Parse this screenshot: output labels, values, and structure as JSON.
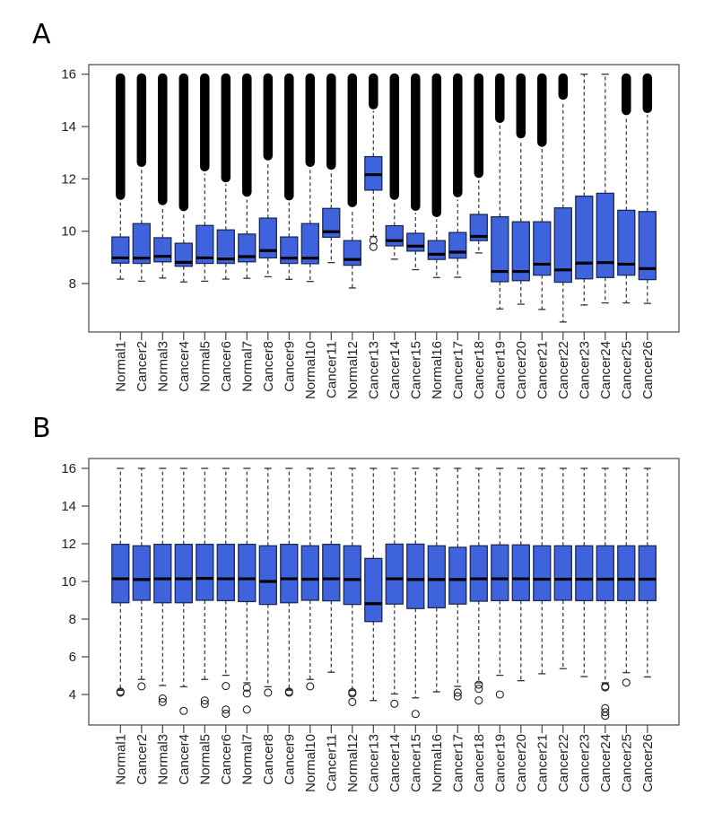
{
  "chart_data": [
    {
      "type": "box",
      "panel_label": "A",
      "title": "",
      "xlabel": "",
      "ylabel": "",
      "ylim": [
        6.0,
        16.6
      ],
      "yticks": [
        8,
        10,
        12,
        14,
        16
      ],
      "categories": [
        "Normal1",
        "Cancer2",
        "Normal3",
        "Cancer4",
        "Normal5",
        "Cancer6",
        "Normal7",
        "Cancer8",
        "Cancer9",
        "Normal10",
        "Cancer11",
        "Normal12",
        "Cancer13",
        "Cancer14",
        "Cancer15",
        "Normal16",
        "Cancer17",
        "Cancer18",
        "Cancer19",
        "Cancer20",
        "Cancer21",
        "Cancer22",
        "Cancer23",
        "Cancer24",
        "Cancer25",
        "Cancer26"
      ],
      "box_color": "#3f63dc",
      "boxes": [
        {
          "lower_whisker": 8.17,
          "q1": 8.78,
          "median": 8.98,
          "q3": 9.78,
          "upper_whisker": 11.1,
          "outlier_range_high": [
            11.23,
            16.0
          ]
        },
        {
          "lower_whisker": 8.09,
          "q1": 8.77,
          "median": 8.97,
          "q3": 10.29,
          "upper_whisker": 12.4,
          "outlier_range_high": [
            12.49,
            16.0
          ]
        },
        {
          "lower_whisker": 8.21,
          "q1": 8.83,
          "median": 9.04,
          "q3": 9.75,
          "upper_whisker": 10.9,
          "outlier_range_high": [
            11.03,
            16.0
          ]
        },
        {
          "lower_whisker": 8.06,
          "q1": 8.66,
          "median": 8.81,
          "q3": 9.54,
          "upper_whisker": 10.7,
          "outlier_range_high": [
            10.8,
            16.0
          ]
        },
        {
          "lower_whisker": 8.09,
          "q1": 8.77,
          "median": 8.98,
          "q3": 10.22,
          "upper_whisker": 12.2,
          "outlier_range_high": [
            12.32,
            16.0
          ]
        },
        {
          "lower_whisker": 8.17,
          "q1": 8.77,
          "median": 8.94,
          "q3": 10.05,
          "upper_whisker": 11.8,
          "outlier_range_high": [
            11.9,
            16.0
          ]
        },
        {
          "lower_whisker": 8.2,
          "q1": 8.83,
          "median": 9.03,
          "q3": 9.89,
          "upper_whisker": 11.2,
          "outlier_range_high": [
            11.35,
            16.0
          ]
        },
        {
          "lower_whisker": 8.26,
          "q1": 8.98,
          "median": 9.26,
          "q3": 10.5,
          "upper_whisker": 12.6,
          "outlier_range_high": [
            12.74,
            16.0
          ]
        },
        {
          "lower_whisker": 8.16,
          "q1": 8.77,
          "median": 8.97,
          "q3": 9.78,
          "upper_whisker": 11.1,
          "outlier_range_high": [
            11.21,
            16.0
          ]
        },
        {
          "lower_whisker": 8.08,
          "q1": 8.76,
          "median": 8.97,
          "q3": 10.29,
          "upper_whisker": 12.4,
          "outlier_range_high": [
            12.49,
            16.0
          ]
        },
        {
          "lower_whisker": 8.8,
          "q1": 9.77,
          "median": 9.98,
          "q3": 10.87,
          "upper_whisker": 12.3,
          "outlier_range_high": [
            12.38,
            16.0
          ]
        },
        {
          "lower_whisker": 7.83,
          "q1": 8.7,
          "median": 8.92,
          "q3": 9.64,
          "upper_whisker": 10.8,
          "outlier_range_high": [
            10.95,
            16.0
          ]
        },
        {
          "lower_whisker": 9.8,
          "q1": 11.57,
          "median": 12.16,
          "q3": 12.85,
          "upper_whisker": 14.6,
          "outlier_range_high": [
            14.69,
            16.0
          ],
          "outliers_low": [
            9.65,
            9.4
          ]
        },
        {
          "lower_whisker": 8.93,
          "q1": 9.44,
          "median": 9.64,
          "q3": 10.21,
          "upper_whisker": 11.1,
          "outlier_range_high": [
            11.23,
            16.0
          ]
        },
        {
          "lower_whisker": 8.53,
          "q1": 9.24,
          "median": 9.43,
          "q3": 9.92,
          "upper_whisker": 10.7,
          "outlier_range_high": [
            10.81,
            16.0
          ]
        },
        {
          "lower_whisker": 8.23,
          "q1": 8.92,
          "median": 9.12,
          "q3": 9.64,
          "upper_whisker": 10.45,
          "outlier_range_high": [
            10.57,
            16.0
          ]
        },
        {
          "lower_whisker": 8.24,
          "q1": 8.97,
          "median": 9.2,
          "q3": 9.95,
          "upper_whisker": 11.2,
          "outlier_range_high": [
            11.33,
            16.0
          ]
        },
        {
          "lower_whisker": 9.17,
          "q1": 9.64,
          "median": 9.8,
          "q3": 10.64,
          "upper_whisker": 11.95,
          "outlier_range_high": [
            12.07,
            16.0
          ]
        },
        {
          "lower_whisker": 7.03,
          "q1": 8.07,
          "median": 8.46,
          "q3": 10.55,
          "upper_whisker": 14.05,
          "outlier_range_high": [
            14.17,
            16.0
          ]
        },
        {
          "lower_whisker": 7.21,
          "q1": 8.11,
          "median": 8.46,
          "q3": 10.36,
          "upper_whisker": 13.45,
          "outlier_range_high": [
            13.58,
            16.0
          ]
        },
        {
          "lower_whisker": 7.01,
          "q1": 8.32,
          "median": 8.74,
          "q3": 10.36,
          "upper_whisker": 13.15,
          "outlier_range_high": [
            13.26,
            16.0
          ]
        },
        {
          "lower_whisker": 6.53,
          "q1": 8.05,
          "median": 8.52,
          "q3": 10.89,
          "upper_whisker": 14.95,
          "outlier_range_high": [
            15.06,
            16.0
          ]
        },
        {
          "lower_whisker": 7.18,
          "q1": 8.18,
          "median": 8.78,
          "q3": 11.34,
          "upper_whisker": 16.0
        },
        {
          "lower_whisker": 7.26,
          "q1": 8.23,
          "median": 8.8,
          "q3": 11.45,
          "upper_whisker": 16.0
        },
        {
          "lower_whisker": 7.26,
          "q1": 8.32,
          "median": 8.74,
          "q3": 10.8,
          "upper_whisker": 14.35,
          "outlier_range_high": [
            14.47,
            16.0
          ]
        },
        {
          "lower_whisker": 7.24,
          "q1": 8.15,
          "median": 8.57,
          "q3": 10.75,
          "upper_whisker": 14.45,
          "outlier_range_high": [
            14.55,
            16.0
          ]
        }
      ]
    },
    {
      "type": "box",
      "panel_label": "B",
      "title": "",
      "xlabel": "",
      "ylabel": "",
      "ylim": [
        2.6,
        16.55
      ],
      "yticks": [
        4,
        6,
        8,
        10,
        12,
        14,
        16
      ],
      "categories": [
        "Normal1",
        "Cancer2",
        "Normal3",
        "Cancer4",
        "Normal5",
        "Cancer6",
        "Normal7",
        "Cancer8",
        "Cancer9",
        "Normal10",
        "Cancer11",
        "Normal12",
        "Cancer13",
        "Cancer14",
        "Cancer15",
        "Normal16",
        "Cancer17",
        "Cancer18",
        "Cancer19",
        "Cancer20",
        "Cancer21",
        "Cancer22",
        "Cancer23",
        "Cancer24",
        "Cancer25",
        "Cancer26"
      ],
      "box_color": "#3f63dc",
      "boxes": [
        {
          "lower_whisker": 4.22,
          "q1": 8.87,
          "median": 10.14,
          "q3": 11.97,
          "upper_whisker": 16.0,
          "outliers": [
            4.15,
            4.1
          ]
        },
        {
          "lower_whisker": 4.8,
          "q1": 9.0,
          "median": 10.1,
          "q3": 11.89,
          "upper_whisker": 16.0,
          "outliers": [
            4.43
          ]
        },
        {
          "lower_whisker": 4.48,
          "q1": 8.87,
          "median": 10.14,
          "q3": 11.97,
          "upper_whisker": 16.0,
          "outliers": [
            3.79,
            3.6
          ]
        },
        {
          "lower_whisker": 4.41,
          "q1": 8.87,
          "median": 10.14,
          "q3": 11.97,
          "upper_whisker": 16.0,
          "outliers": [
            3.13
          ]
        },
        {
          "lower_whisker": 4.8,
          "q1": 9.0,
          "median": 10.16,
          "q3": 11.97,
          "upper_whisker": 16.0,
          "outliers": [
            3.68,
            3.5
          ]
        },
        {
          "lower_whisker": 5.02,
          "q1": 8.98,
          "median": 10.14,
          "q3": 11.97,
          "upper_whisker": 16.0,
          "outliers": [
            4.45,
            3.2,
            2.98
          ]
        },
        {
          "lower_whisker": 4.62,
          "q1": 8.93,
          "median": 10.14,
          "q3": 11.97,
          "upper_whisker": 16.0,
          "outliers": [
            4.36,
            4.05,
            3.2
          ]
        },
        {
          "lower_whisker": 4.41,
          "q1": 8.78,
          "median": 10.0,
          "q3": 11.89,
          "upper_whisker": 16.0,
          "outliers": [
            4.1
          ]
        },
        {
          "lower_whisker": 4.22,
          "q1": 8.87,
          "median": 10.14,
          "q3": 11.97,
          "upper_whisker": 16.0,
          "outliers": [
            4.15,
            4.1
          ]
        },
        {
          "lower_whisker": 4.8,
          "q1": 9.0,
          "median": 10.12,
          "q3": 11.89,
          "upper_whisker": 16.0,
          "outliers": [
            4.43
          ]
        },
        {
          "lower_whisker": 5.18,
          "q1": 8.97,
          "median": 10.14,
          "q3": 11.97,
          "upper_whisker": 16.0,
          "outliers": []
        },
        {
          "lower_whisker": 4.22,
          "q1": 8.78,
          "median": 10.1,
          "q3": 11.89,
          "upper_whisker": 16.0,
          "outliers": [
            4.12,
            4.05,
            3.6
          ]
        },
        {
          "lower_whisker": 3.68,
          "q1": 7.87,
          "median": 8.82,
          "q3": 11.22,
          "upper_whisker": 16.0,
          "outliers": []
        },
        {
          "lower_whisker": 4.03,
          "q1": 8.8,
          "median": 10.14,
          "q3": 11.98,
          "upper_whisker": 16.0,
          "outliers": [
            3.51
          ]
        },
        {
          "lower_whisker": 3.82,
          "q1": 8.56,
          "median": 10.1,
          "q3": 11.98,
          "upper_whisker": 16.0,
          "outliers": [
            2.97
          ]
        },
        {
          "lower_whisker": 4.14,
          "q1": 8.6,
          "median": 10.1,
          "q3": 11.89,
          "upper_whisker": 16.0,
          "outliers": []
        },
        {
          "lower_whisker": 4.43,
          "q1": 8.8,
          "median": 10.1,
          "q3": 11.81,
          "upper_whisker": 16.0,
          "outliers": [
            4.1,
            3.9
          ]
        },
        {
          "lower_whisker": 4.62,
          "q1": 8.95,
          "median": 10.14,
          "q3": 11.89,
          "upper_whisker": 16.0,
          "outliers": [
            4.52,
            4.3,
            3.68
          ]
        },
        {
          "lower_whisker": 5.02,
          "q1": 8.98,
          "median": 10.14,
          "q3": 11.94,
          "upper_whisker": 16.0,
          "outliers": [
            4.0
          ]
        },
        {
          "lower_whisker": 4.73,
          "q1": 8.98,
          "median": 10.14,
          "q3": 11.94,
          "upper_whisker": 16.0,
          "outliers": []
        },
        {
          "lower_whisker": 5.1,
          "q1": 8.98,
          "median": 10.12,
          "q3": 11.89,
          "upper_whisker": 16.0,
          "outliers": []
        },
        {
          "lower_whisker": 5.37,
          "q1": 9.0,
          "median": 10.12,
          "q3": 11.89,
          "upper_whisker": 16.0,
          "outliers": []
        },
        {
          "lower_whisker": 4.95,
          "q1": 8.98,
          "median": 10.12,
          "q3": 11.89,
          "upper_whisker": 16.0,
          "outliers": []
        },
        {
          "lower_whisker": 4.62,
          "q1": 8.98,
          "median": 10.12,
          "q3": 11.89,
          "upper_whisker": 16.0,
          "outliers": [
            4.43,
            4.38,
            3.27,
            3.06,
            2.87
          ]
        },
        {
          "lower_whisker": 5.16,
          "q1": 8.98,
          "median": 10.12,
          "q3": 11.89,
          "upper_whisker": 16.0,
          "outliers": [
            4.63
          ]
        },
        {
          "lower_whisker": 4.93,
          "q1": 8.98,
          "median": 10.12,
          "q3": 11.89,
          "upper_whisker": 16.0,
          "outliers": []
        }
      ]
    }
  ]
}
